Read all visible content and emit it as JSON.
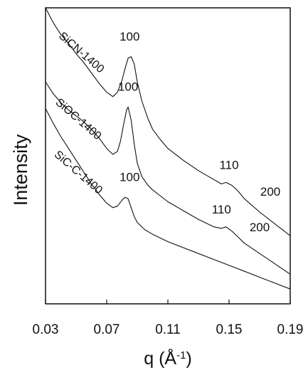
{
  "chart_data": {
    "type": "line",
    "title": "",
    "xlabel_prefix": "q (",
    "xlabel_unit": "Å",
    "xlabel_exp": "-1",
    "xlabel_suffix": ")",
    "ylabel": "Intensity",
    "xlim": [
      0.03,
      0.19
    ],
    "ylim": [
      0,
      10
    ],
    "x_ticks": [
      "0.03",
      "0.07",
      "0.11",
      "0.15",
      "0.19"
    ],
    "grid": false,
    "legend": "none",
    "line_color": "#111111",
    "series": [
      {
        "name": "SiCN-1400",
        "x": [
          0.03,
          0.035,
          0.04,
          0.045,
          0.05,
          0.055,
          0.06,
          0.065,
          0.07,
          0.074,
          0.077,
          0.08,
          0.082,
          0.084,
          0.086,
          0.088,
          0.09,
          0.093,
          0.097,
          0.1,
          0.105,
          0.11,
          0.12,
          0.13,
          0.14,
          0.145,
          0.148,
          0.152,
          0.156,
          0.16,
          0.17,
          0.18,
          0.19
        ],
        "y": [
          10.0,
          9.5,
          9.1,
          8.8,
          8.45,
          8.15,
          7.8,
          7.45,
          7.15,
          7.0,
          7.15,
          7.55,
          7.95,
          8.3,
          8.35,
          8.1,
          7.5,
          6.85,
          6.25,
          5.9,
          5.55,
          5.25,
          4.85,
          4.5,
          4.2,
          4.05,
          4.1,
          4.0,
          3.8,
          3.55,
          3.1,
          2.7,
          2.3
        ]
      },
      {
        "name": "SiOC-1400",
        "x": [
          0.03,
          0.035,
          0.04,
          0.045,
          0.05,
          0.055,
          0.06,
          0.065,
          0.07,
          0.074,
          0.077,
          0.079,
          0.081,
          0.083,
          0.084,
          0.086,
          0.088,
          0.09,
          0.093,
          0.097,
          0.1,
          0.11,
          0.12,
          0.13,
          0.14,
          0.145,
          0.148,
          0.152,
          0.156,
          0.16,
          0.17,
          0.18,
          0.19
        ],
        "y": [
          7.5,
          7.1,
          6.8,
          6.55,
          6.35,
          6.15,
          5.9,
          5.6,
          5.25,
          5.05,
          5.15,
          5.5,
          6.05,
          6.55,
          6.65,
          6.2,
          5.4,
          4.75,
          4.3,
          4.0,
          3.85,
          3.45,
          3.15,
          2.85,
          2.6,
          2.55,
          2.6,
          2.45,
          2.25,
          2.05,
          1.7,
          1.35,
          1.0
        ]
      },
      {
        "name": "SiC-C-1400",
        "x": [
          0.03,
          0.035,
          0.04,
          0.045,
          0.05,
          0.055,
          0.06,
          0.065,
          0.07,
          0.074,
          0.077,
          0.08,
          0.082,
          0.084,
          0.086,
          0.088,
          0.09,
          0.095,
          0.1,
          0.11,
          0.12,
          0.13,
          0.14,
          0.15,
          0.16,
          0.17,
          0.18,
          0.19
        ],
        "y": [
          6.6,
          6.1,
          5.65,
          5.25,
          4.85,
          4.45,
          4.05,
          3.7,
          3.4,
          3.25,
          3.3,
          3.5,
          3.6,
          3.55,
          3.25,
          2.95,
          2.75,
          2.5,
          2.35,
          2.1,
          1.9,
          1.7,
          1.5,
          1.3,
          1.1,
          0.9,
          0.7,
          0.5
        ]
      }
    ],
    "peak_labels": [
      {
        "text": "100",
        "x": 0.085,
        "y": 8.9
      },
      {
        "text": "100",
        "x": 0.084,
        "y": 7.2
      },
      {
        "text": "110",
        "x": 0.15,
        "y": 4.55
      },
      {
        "text": "200",
        "x": 0.177,
        "y": 3.65
      },
      {
        "text": "100",
        "x": 0.085,
        "y": 4.15
      },
      {
        "text": "110",
        "x": 0.145,
        "y": 3.05
      },
      {
        "text": "200",
        "x": 0.17,
        "y": 2.45
      }
    ],
    "series_labels": [
      {
        "text": "SiCN-1400",
        "x": 0.052,
        "y": 8.4
      },
      {
        "text": "SiOC-1400",
        "x": 0.05,
        "y": 6.15
      },
      {
        "text": "SiC-C-1400",
        "x": 0.05,
        "y": 4.35
      }
    ]
  }
}
